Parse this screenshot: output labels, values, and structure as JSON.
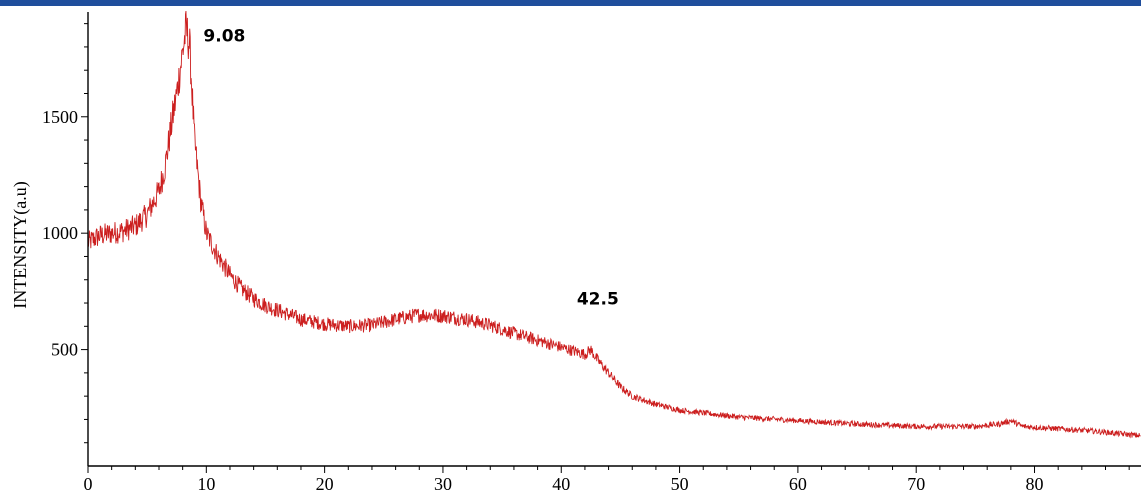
{
  "chart_data": {
    "type": "line",
    "title": "",
    "xlabel": "",
    "ylabel": "INTENSITY(a.u)",
    "xlim": [
      0,
      89
    ],
    "ylim": [
      0,
      1950
    ],
    "x_ticks": [
      0,
      10,
      20,
      30,
      40,
      50,
      60,
      70,
      80
    ],
    "y_ticks": [
      500,
      1000,
      1500
    ],
    "grid": false,
    "legend": "none",
    "series": [
      {
        "color": "#cc1f1f",
        "points": [
          [
            0,
            960
          ],
          [
            1,
            990
          ],
          [
            2,
            1000
          ],
          [
            3,
            1010
          ],
          [
            4,
            1030
          ],
          [
            5,
            1080
          ],
          [
            6,
            1180
          ],
          [
            6.5,
            1280
          ],
          [
            7,
            1450
          ],
          [
            7.5,
            1600
          ],
          [
            8,
            1780
          ],
          [
            8.3,
            1880
          ],
          [
            8.6,
            1800
          ],
          [
            9.0,
            1400
          ],
          [
            9.5,
            1150
          ],
          [
            10,
            1000
          ],
          [
            11,
            900
          ],
          [
            12,
            820
          ],
          [
            13,
            760
          ],
          [
            14,
            720
          ],
          [
            15,
            690
          ],
          [
            16,
            670
          ],
          [
            17,
            650
          ],
          [
            18,
            630
          ],
          [
            20,
            610
          ],
          [
            22,
            600
          ],
          [
            24,
            605
          ],
          [
            26,
            630
          ],
          [
            28,
            650
          ],
          [
            30,
            645
          ],
          [
            32,
            630
          ],
          [
            34,
            605
          ],
          [
            36,
            570
          ],
          [
            38,
            540
          ],
          [
            40,
            510
          ],
          [
            42,
            480
          ],
          [
            42.5,
            500
          ],
          [
            43,
            460
          ],
          [
            44,
            400
          ],
          [
            45,
            340
          ],
          [
            46,
            300
          ],
          [
            48,
            265
          ],
          [
            50,
            240
          ],
          [
            55,
            210
          ],
          [
            60,
            195
          ],
          [
            65,
            180
          ],
          [
            70,
            170
          ],
          [
            75,
            170
          ],
          [
            77,
            180
          ],
          [
            78,
            195
          ],
          [
            79,
            170
          ],
          [
            82,
            160
          ],
          [
            85,
            150
          ],
          [
            89,
            130
          ]
        ]
      }
    ],
    "annotations": [
      {
        "text": "9.08",
        "x": 9.08,
        "y": 1850
      },
      {
        "text": "42.5",
        "x": 42.5,
        "y": 720
      }
    ],
    "colors": {
      "line": "#cc1f1f",
      "axis": "#000000",
      "banner": "#1f4e9c"
    }
  }
}
